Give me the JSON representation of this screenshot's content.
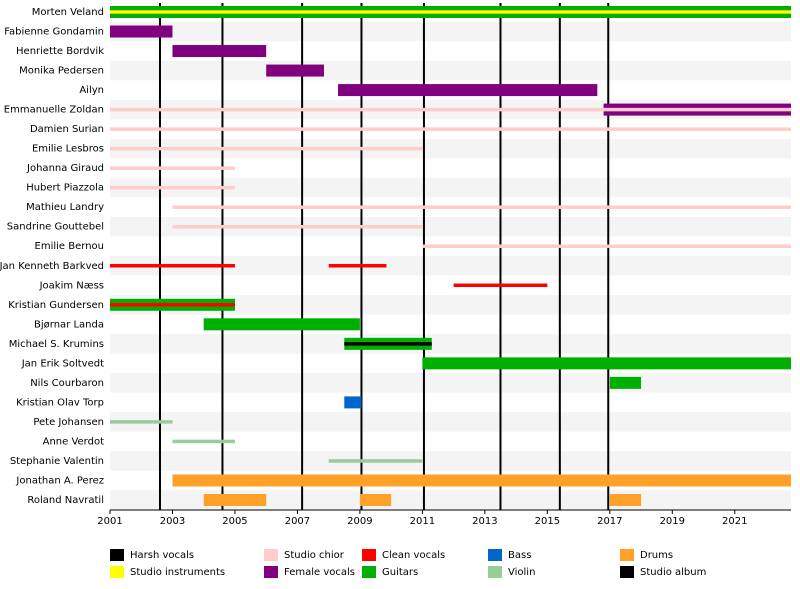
{
  "chart_data": {
    "type": "timeline",
    "xlim": [
      2001,
      2022.8
    ],
    "xticks": [
      2001,
      2003,
      2005,
      2007,
      2009,
      2011,
      2013,
      2015,
      2017,
      2019,
      2021
    ],
    "roles": [
      {
        "name": "Harsh vocals",
        "color": "#000000"
      },
      {
        "name": "Studio instruments",
        "color": "#ffff00"
      },
      {
        "name": "Studio chior",
        "color": "#ffcccc"
      },
      {
        "name": "Female vocals",
        "color": "#800080"
      },
      {
        "name": "Clean vocals",
        "color": "#ff0000"
      },
      {
        "name": "Guitars",
        "color": "#00b000"
      },
      {
        "name": "Bass",
        "color": "#0066cc"
      },
      {
        "name": "Violin",
        "color": "#99cc99"
      },
      {
        "name": "Drums",
        "color": "#ffa028"
      }
    ],
    "album_legend": {
      "name": "Studio album",
      "color": "#000000"
    },
    "albums": [
      2002.6,
      2004.6,
      2007.15,
      2009.05,
      2011.05,
      2013.5,
      2015.4,
      2016.95
    ],
    "members": [
      {
        "name": "Morten Veland",
        "periods": [
          {
            "role": "Guitars",
            "start": 2001,
            "end": 2022.8
          },
          {
            "role": "Harsh vocals",
            "start": 2001,
            "end": 2022.8
          },
          {
            "role": "Studio instruments",
            "start": 2001,
            "end": 2022.8
          }
        ]
      },
      {
        "name": "Fabienne Gondamin",
        "periods": [
          {
            "role": "Female vocals",
            "start": 2001,
            "end": 2003
          }
        ]
      },
      {
        "name": "Henriette Bordvik",
        "periods": [
          {
            "role": "Female vocals",
            "start": 2003,
            "end": 2006
          }
        ]
      },
      {
        "name": "Monika Pedersen",
        "periods": [
          {
            "role": "Female vocals",
            "start": 2006,
            "end": 2007.85
          }
        ]
      },
      {
        "name": "Ailyn",
        "periods": [
          {
            "role": "Female vocals",
            "start": 2008.3,
            "end": 2016.6
          }
        ]
      },
      {
        "name": "Emmanuelle Zoldan",
        "periods": [
          {
            "role": "Female vocals",
            "start": 2016.8,
            "end": 2022.8
          },
          {
            "role": "Studio chior",
            "start": 2001,
            "end": 2022.8
          }
        ]
      },
      {
        "name": "Damien Surian",
        "periods": [
          {
            "role": "Studio chior",
            "start": 2001,
            "end": 2022.8
          }
        ]
      },
      {
        "name": "Emilie Lesbros",
        "periods": [
          {
            "role": "Studio chior",
            "start": 2001,
            "end": 2011
          }
        ]
      },
      {
        "name": "Johanna Giraud",
        "periods": [
          {
            "role": "Studio chior",
            "start": 2001,
            "end": 2005
          }
        ]
      },
      {
        "name": "Hubert Piazzola",
        "periods": [
          {
            "role": "Studio chior",
            "start": 2001,
            "end": 2005
          }
        ]
      },
      {
        "name": "Mathieu Landry",
        "periods": [
          {
            "role": "Studio chior",
            "start": 2003,
            "end": 2022.8
          }
        ]
      },
      {
        "name": "Sandrine Gouttebel",
        "periods": [
          {
            "role": "Studio chior",
            "start": 2003,
            "end": 2011
          }
        ]
      },
      {
        "name": "Emilie Bernou",
        "periods": [
          {
            "role": "Studio chior",
            "start": 2011,
            "end": 2022.8
          }
        ]
      },
      {
        "name": "Jan Kenneth Barkved",
        "periods": [
          {
            "role": "Clean vocals",
            "start": 2001,
            "end": 2005
          },
          {
            "role": "Clean vocals",
            "start": 2008,
            "end": 2009.85
          }
        ]
      },
      {
        "name": "Joakim Næss",
        "periods": [
          {
            "role": "Clean vocals",
            "start": 2012,
            "end": 2015
          }
        ]
      },
      {
        "name": "Kristian Gundersen",
        "periods": [
          {
            "role": "Guitars",
            "start": 2001,
            "end": 2005
          },
          {
            "role": "Clean vocals",
            "start": 2001,
            "end": 2005
          }
        ]
      },
      {
        "name": "Bjørnar Landa",
        "periods": [
          {
            "role": "Guitars",
            "start": 2004,
            "end": 2009
          }
        ]
      },
      {
        "name": "Michael S. Krumins",
        "periods": [
          {
            "role": "Guitars",
            "start": 2008.5,
            "end": 2011.3
          },
          {
            "role": "Harsh vocals",
            "start": 2008.5,
            "end": 2011.3
          }
        ]
      },
      {
        "name": "Jan Erik Soltvedt",
        "periods": [
          {
            "role": "Guitars",
            "start": 2011,
            "end": 2022.8
          }
        ]
      },
      {
        "name": "Nils Courbaron",
        "periods": [
          {
            "role": "Guitars",
            "start": 2017,
            "end": 2018
          }
        ]
      },
      {
        "name": "Kristian Olav Torp",
        "periods": [
          {
            "role": "Bass",
            "start": 2008.5,
            "end": 2009.05
          }
        ]
      },
      {
        "name": "Pete Johansen",
        "periods": [
          {
            "role": "Violin",
            "start": 2001,
            "end": 2003
          }
        ]
      },
      {
        "name": "Anne Verdot",
        "periods": [
          {
            "role": "Violin",
            "start": 2003,
            "end": 2005
          }
        ]
      },
      {
        "name": "Stephanie Valentin",
        "periods": [
          {
            "role": "Violin",
            "start": 2008,
            "end": 2011
          }
        ]
      },
      {
        "name": "Jonathan A. Perez",
        "periods": [
          {
            "role": "Drums",
            "start": 2003,
            "end": 2022.8
          }
        ]
      },
      {
        "name": "Roland Navratil",
        "periods": [
          {
            "role": "Drums",
            "start": 2004,
            "end": 2006
          },
          {
            "role": "Drums",
            "start": 2009,
            "end": 2010
          },
          {
            "role": "Drums",
            "start": 2017,
            "end": 2018
          }
        ]
      }
    ]
  }
}
